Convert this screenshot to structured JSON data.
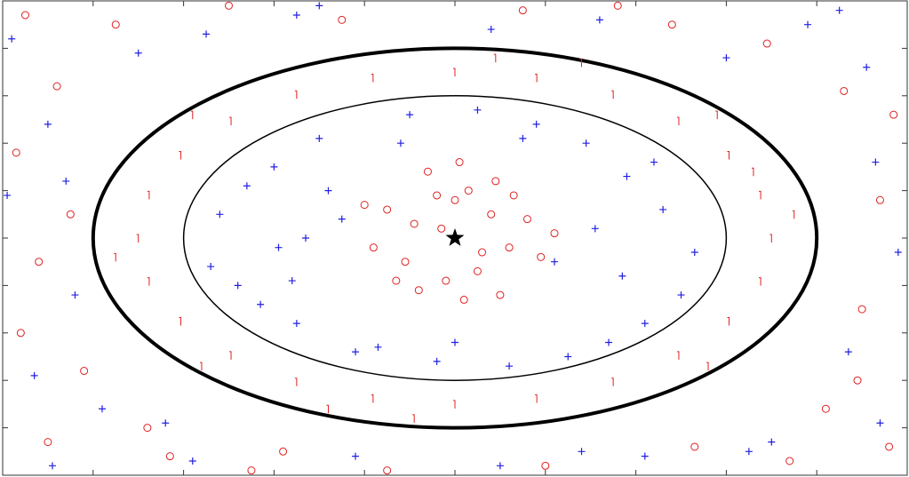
{
  "chart_data": {
    "type": "scatter",
    "xlim": [
      -10,
      10
    ],
    "ylim": [
      -5,
      5
    ],
    "xticks": [
      -10,
      -8,
      -6,
      -4,
      -2,
      0,
      2,
      4,
      6,
      8,
      10
    ],
    "yticks": [
      -5,
      -4,
      -3,
      -2,
      -1,
      0,
      1,
      2,
      3,
      4,
      5
    ],
    "ellipses": [
      {
        "cx": 0,
        "cy": 0,
        "a": 8,
        "b": 4,
        "color": "#000000",
        "linewidth": 4
      },
      {
        "cx": 0,
        "cy": 0,
        "a": 6,
        "b": 3,
        "color": "#000000",
        "linewidth": 1.5
      }
    ],
    "series": [
      {
        "marker": "circle",
        "color": "#e02020",
        "x": [
          0,
          0.3,
          -0.4,
          0.8,
          -0.9,
          1.2,
          -1.5,
          0.5,
          -0.2,
          1.6,
          -1.1,
          0.9,
          -0.6,
          1.9,
          -1.8,
          0.2,
          -0.3,
          1.3,
          -0.8,
          0.6,
          2.2,
          -2.0,
          0.1,
          -1.3,
          1.0
        ],
        "y": [
          0.8,
          1.0,
          0.9,
          0.5,
          0.3,
          -0.2,
          0.6,
          -0.7,
          -0.9,
          0.4,
          -0.5,
          1.2,
          1.4,
          -0.4,
          -0.2,
          -1.3,
          0.2,
          0.9,
          -1.1,
          -0.3,
          0.1,
          0.7,
          1.6,
          -0.9,
          -1.2
        ]
      },
      {
        "marker": "plus",
        "color": "#2020e0",
        "x": [
          -5.2,
          -4.8,
          -4.0,
          -3.5,
          -3.0,
          -2.2,
          -1.0,
          0.5,
          1.8,
          2.9,
          3.8,
          4.6,
          5.3,
          5.0,
          4.2,
          3.4,
          2.5,
          1.2,
          -0.4,
          -1.7,
          -2.8,
          -3.9,
          -4.6,
          -5.4,
          -3.3,
          3.1,
          -2.5,
          2.2,
          -4.3,
          4.4,
          0.0,
          -1.2,
          1.5,
          -3.6,
          3.7
        ],
        "y": [
          0.5,
          -1.0,
          1.5,
          -1.8,
          2.1,
          -2.4,
          2.6,
          2.7,
          2.4,
          2.0,
          1.3,
          0.6,
          -0.3,
          -1.2,
          -1.8,
          -2.2,
          -2.5,
          -2.7,
          -2.6,
          -2.3,
          1.0,
          -0.2,
          1.1,
          -0.6,
          0.0,
          0.2,
          0.4,
          -0.5,
          -1.4,
          1.6,
          -2.2,
          2.0,
          2.1,
          -0.9,
          -0.8
        ]
      },
      {
        "marker": "tick",
        "color": "#e02020",
        "x": [
          7,
          6.76,
          6.06,
          4.95,
          3.5,
          1.81,
          0,
          -1.81,
          -3.5,
          -4.95,
          -6.06,
          -6.76,
          -7,
          -6.76,
          -6.06,
          -4.95,
          -3.5,
          -1.81,
          0,
          1.81,
          3.5,
          4.95,
          6.06,
          6.76,
          7.5,
          -7.5,
          2.8,
          -2.8,
          5.8,
          -5.8,
          -5.6,
          5.6,
          0.9,
          -0.9,
          6.6
        ],
        "y": [
          0,
          0.91,
          1.75,
          2.47,
          3.03,
          3.38,
          3.5,
          3.38,
          3.03,
          2.47,
          1.75,
          0.91,
          0,
          -0.91,
          -1.75,
          -2.47,
          -3.03,
          -3.38,
          -3.5,
          -3.38,
          -3.03,
          -2.47,
          -1.75,
          -0.91,
          0.5,
          -0.4,
          3.7,
          -3.6,
          2.6,
          2.6,
          -2.7,
          -2.7,
          3.8,
          -3.8,
          1.4
        ]
      },
      {
        "marker": "circle",
        "color": "#e02020",
        "x": [
          -9.5,
          -8.8,
          -9.2,
          -7.5,
          -6.3,
          -8.2,
          -9.7,
          -5.0,
          -2.5,
          1.5,
          4.8,
          6.9,
          8.6,
          9.4,
          9.0,
          8.2,
          9.6,
          7.4,
          5.3,
          2.0,
          -1.5,
          -3.8,
          -6.8,
          -9.0,
          -9.6,
          9.7,
          -4.5,
          3.6,
          8.9,
          -8.5
        ],
        "y": [
          4.7,
          3.2,
          -0.5,
          4.5,
          -4.6,
          -2.8,
          1.8,
          4.9,
          4.6,
          4.8,
          4.5,
          4.1,
          3.1,
          0.8,
          -1.5,
          -3.6,
          -4.4,
          -4.7,
          -4.4,
          -4.8,
          -4.9,
          -4.5,
          -4.0,
          -4.3,
          -2.0,
          2.6,
          -4.9,
          4.9,
          -3.0,
          0.5
        ]
      },
      {
        "marker": "plus",
        "color": "#2020e0",
        "x": [
          -9.8,
          -9.0,
          -8.4,
          -7.0,
          -5.5,
          -3.0,
          0.8,
          3.2,
          6.0,
          7.8,
          9.3,
          9.8,
          8.7,
          9.4,
          8.5,
          7.0,
          4.2,
          1.0,
          -2.2,
          -5.8,
          -7.8,
          -9.3,
          -9.9,
          -8.6,
          -3.5,
          2.8,
          6.5,
          9.1,
          -6.4,
          -8.9
        ],
        "y": [
          4.2,
          2.4,
          -1.2,
          3.9,
          4.3,
          4.9,
          4.4,
          4.6,
          3.8,
          4.5,
          1.6,
          -0.3,
          -2.4,
          -3.9,
          4.8,
          -4.3,
          -4.6,
          -4.8,
          -4.6,
          -4.7,
          -3.6,
          -2.9,
          0.9,
          1.2,
          4.7,
          -4.5,
          -4.5,
          3.6,
          -3.9,
          -4.8
        ]
      },
      {
        "marker": "star",
        "color": "#000000",
        "x": [
          0
        ],
        "y": [
          0
        ]
      }
    ]
  }
}
